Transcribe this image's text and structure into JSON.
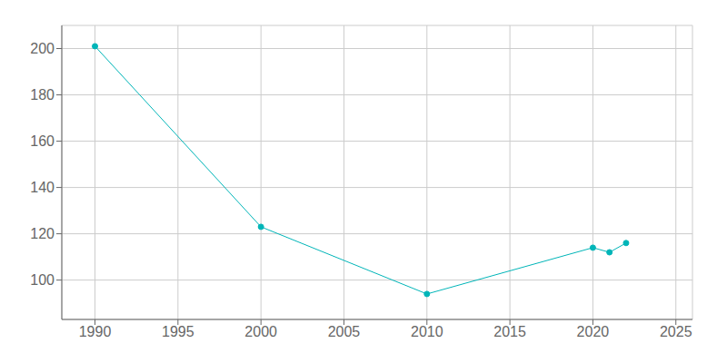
{
  "chart_data": {
    "type": "line",
    "x": [
      1990,
      2000,
      2010,
      2020,
      2021,
      2022
    ],
    "values": [
      201,
      123,
      94,
      114,
      112,
      116
    ],
    "color": "#00b5b8",
    "marker": "circle",
    "xlim": [
      1988,
      2026
    ],
    "ylim": [
      83,
      210
    ],
    "xticks": [
      1990,
      1995,
      2000,
      2005,
      2010,
      2015,
      2020,
      2025
    ],
    "yticks": [
      100,
      120,
      140,
      160,
      180,
      200
    ],
    "grid": true
  }
}
